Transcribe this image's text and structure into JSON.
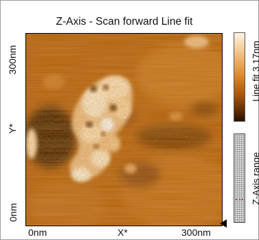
{
  "title": "Z-Axis - Scan forward   Line fit",
  "y_axis": {
    "top_label": "300nm",
    "axis_label": "Y*",
    "bottom_label": "0nm"
  },
  "x_axis": {
    "left_label": "0nm",
    "axis_label": "X*",
    "right_label": "300nm"
  },
  "colorbar": {
    "label": "Line fit 3.17nm"
  },
  "range_control": {
    "label": "Z-Axis range",
    "marker_color": "#d43020"
  },
  "colors": {
    "image_base": "#b9600a",
    "highlight": "#fff1da",
    "shadow": "#3a1a02"
  }
}
